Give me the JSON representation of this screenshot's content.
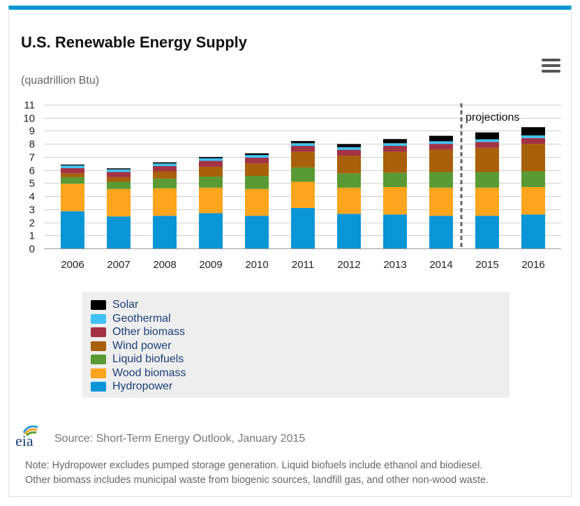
{
  "title": "U.S. Renewable Energy Supply",
  "units": "(quadrillion Btu)",
  "menu_icon": "hamburger-menu-icon",
  "logo_text": "eia",
  "source": "Source: Short-Term Energy Outlook, January 2015",
  "note_line1": "Note: Hydropower excludes pumped storage generation. Liquid biofuels include ethanol and biodiesel.",
  "note_line2": "Other biomass includes municipal waste from biogenic sources, landfill gas, and other non-wood waste.",
  "accent_color": "#0d95d3",
  "chart_data": {
    "type": "bar",
    "stacked": true,
    "categories": [
      "2006",
      "2007",
      "2008",
      "2009",
      "2010",
      "2011",
      "2012",
      "2013",
      "2014",
      "2015",
      "2016"
    ],
    "ylim": [
      0,
      11
    ],
    "yticks": [
      0,
      1,
      2,
      3,
      4,
      5,
      6,
      7,
      8,
      9,
      10,
      11
    ],
    "grid": true,
    "annotation": "projections",
    "projection_after": "2014",
    "legend_position": "bottom",
    "series": [
      {
        "name": "Hydropower",
        "color": "#0a96d6",
        "values": [
          2.85,
          2.45,
          2.5,
          2.7,
          2.5,
          3.1,
          2.65,
          2.6,
          2.5,
          2.5,
          2.6
        ]
      },
      {
        "name": "Wood biomass",
        "color": "#fda51c",
        "values": [
          2.1,
          2.1,
          2.1,
          1.95,
          2.05,
          2.0,
          2.0,
          2.1,
          2.15,
          2.15,
          2.1
        ]
      },
      {
        "name": "Liquid biofuels",
        "color": "#5a9a35",
        "values": [
          0.5,
          0.55,
          0.75,
          0.85,
          1.0,
          1.1,
          1.1,
          1.1,
          1.2,
          1.2,
          1.2
        ]
      },
      {
        "name": "Wind power",
        "color": "#a8600a",
        "values": [
          0.3,
          0.35,
          0.55,
          0.75,
          0.95,
          1.2,
          1.35,
          1.6,
          1.7,
          1.85,
          2.1
        ]
      },
      {
        "name": "Other biomass",
        "color": "#a33245",
        "values": [
          0.4,
          0.4,
          0.4,
          0.45,
          0.45,
          0.45,
          0.45,
          0.45,
          0.45,
          0.45,
          0.45
        ]
      },
      {
        "name": "Geothermal",
        "color": "#3fc2f2",
        "values": [
          0.2,
          0.2,
          0.2,
          0.2,
          0.2,
          0.2,
          0.2,
          0.2,
          0.2,
          0.2,
          0.2
        ]
      },
      {
        "name": "Solar",
        "color": "#000000",
        "values": [
          0.07,
          0.08,
          0.09,
          0.1,
          0.13,
          0.17,
          0.24,
          0.32,
          0.42,
          0.53,
          0.63
        ]
      }
    ],
    "legend_order": [
      "Solar",
      "Geothermal",
      "Other biomass",
      "Wind power",
      "Liquid biofuels",
      "Wood biomass",
      "Hydropower"
    ]
  }
}
